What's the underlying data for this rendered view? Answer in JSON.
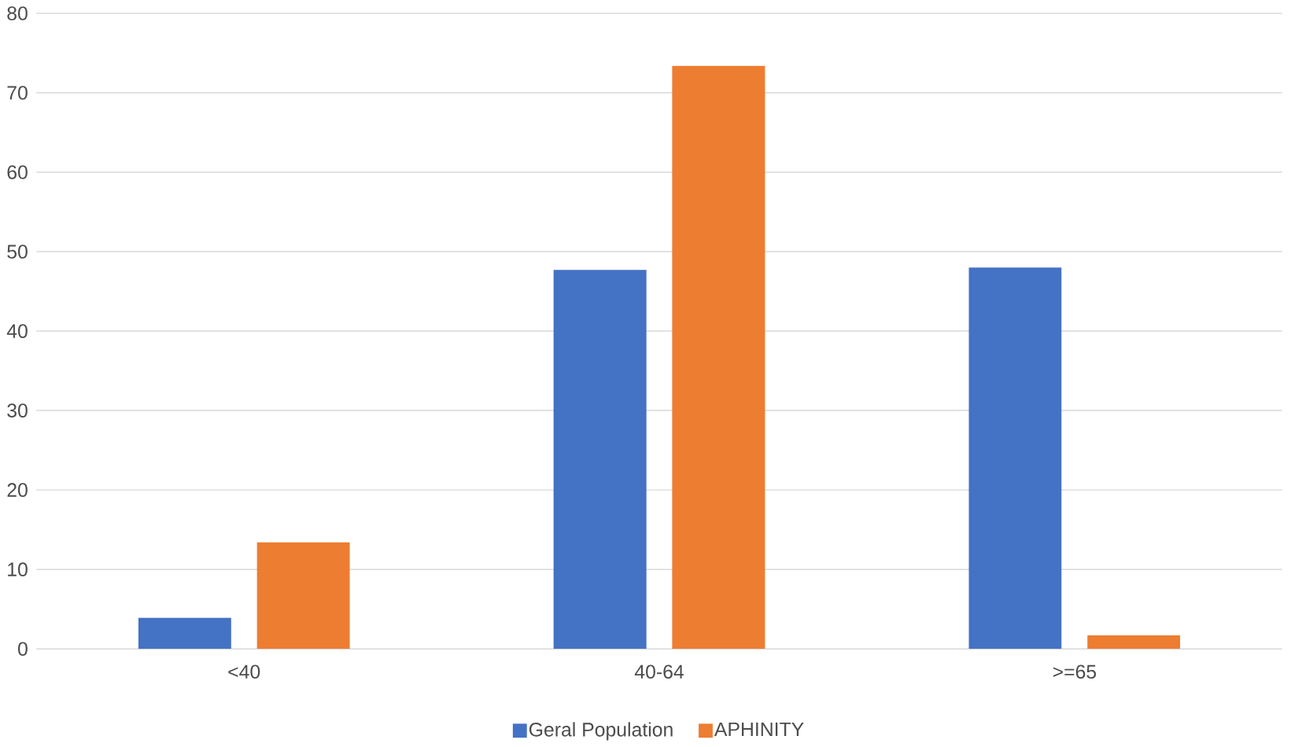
{
  "chart_data": {
    "type": "bar",
    "categories": [
      "<40",
      "40-64",
      ">=65"
    ],
    "series": [
      {
        "name": "Geral Population",
        "color": "#4472c4",
        "values": [
          3.9,
          47.7,
          48.0
        ]
      },
      {
        "name": "APHINITY",
        "color": "#ed7d31",
        "values": [
          13.4,
          73.4,
          1.7
        ]
      }
    ],
    "ylim": [
      0,
      80
    ],
    "yticks": [
      0,
      10,
      20,
      30,
      40,
      50,
      60,
      70,
      80
    ],
    "grid": "y",
    "legend": "bottom"
  }
}
